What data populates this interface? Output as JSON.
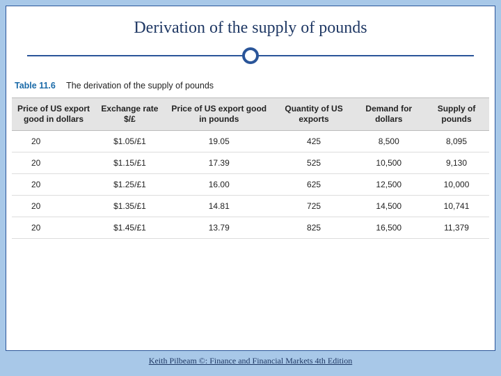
{
  "slide": {
    "title": "Derivation of the supply of pounds",
    "footer": "Keith Pilbeam ©: Finance and Financial Markets 4th Edition"
  },
  "table": {
    "label": "Table 11.6",
    "caption": "The derivation of the supply of pounds",
    "columns": [
      "Price of US export good in dollars",
      "Exchange rate $/£",
      "Price of US export good in pounds",
      "Quantity of US exports",
      "Demand for dollars",
      "Supply of pounds"
    ],
    "rows": [
      [
        "20",
        "$1.05/£1",
        "19.05",
        "425",
        "8,500",
        "8,095"
      ],
      [
        "20",
        "$1.15/£1",
        "17.39",
        "525",
        "10,500",
        "9,130"
      ],
      [
        "20",
        "$1.25/£1",
        "16.00",
        "625",
        "12,500",
        "10,000"
      ],
      [
        "20",
        "$1.35/£1",
        "14.81",
        "725",
        "14,500",
        "10,741"
      ],
      [
        "20",
        "$1.45/£1",
        "13.79",
        "825",
        "16,500",
        "11,379"
      ]
    ]
  },
  "style": {
    "page_bg": "#a8c8e8",
    "frame_border": "#2a5599",
    "title_color": "#1f3864",
    "header_bg": "#e4e4e4",
    "caption_accent": "#1a6aa8"
  }
}
